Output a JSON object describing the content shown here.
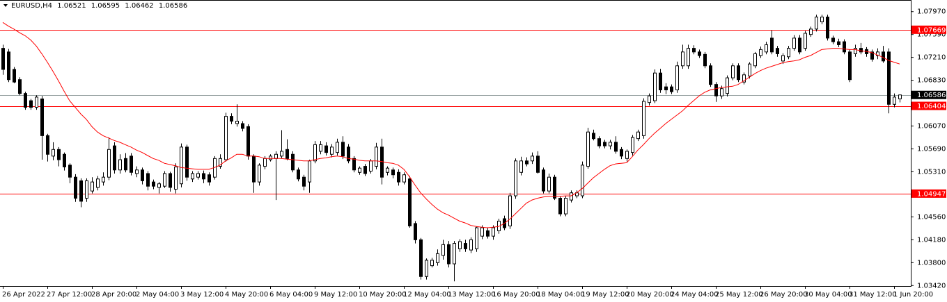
{
  "chart_data": {
    "type": "candlestick",
    "header": {
      "symbol": "EURUSD,H4",
      "open": 1.06521,
      "high": 1.06595,
      "low": 1.06462,
      "close": 1.06586
    },
    "categories": [
      "26 Apr 2022",
      null,
      null,
      null,
      null,
      null,
      null,
      null,
      "27 Apr 12:00",
      null,
      null,
      null,
      null,
      null,
      null,
      null,
      "28 Apr 20:00",
      null,
      null,
      null,
      null,
      null,
      null,
      null,
      "2 May 04:00",
      null,
      null,
      null,
      null,
      null,
      null,
      null,
      "3 May 12:00",
      null,
      null,
      null,
      null,
      null,
      null,
      null,
      "4 May 20:00",
      null,
      null,
      null,
      null,
      null,
      null,
      null,
      "6 May 04:00",
      null,
      null,
      null,
      null,
      null,
      null,
      null,
      "9 May 12:00",
      null,
      null,
      null,
      null,
      null,
      null,
      null,
      "10 May 20:00",
      null,
      null,
      null,
      null,
      null,
      null,
      null,
      "12 May 04:00",
      null,
      null,
      null,
      null,
      null,
      null,
      null,
      "13 May 12:00",
      null,
      null,
      null,
      null,
      null,
      null,
      null,
      "16 May 20:00",
      null,
      null,
      null,
      null,
      null,
      null,
      null,
      "18 May 04:00",
      null,
      null,
      null,
      null,
      null,
      null,
      null,
      "19 May 12:00",
      null,
      null,
      null,
      null,
      null,
      null,
      null,
      "20 May 20:00",
      null,
      null,
      null,
      null,
      null,
      null,
      null,
      "24 May 04:00",
      null,
      null,
      null,
      null,
      null,
      null,
      null,
      "25 May 12:00",
      null,
      null,
      null,
      null,
      null,
      null,
      null,
      "26 May 20:00",
      null,
      null,
      null,
      null,
      null,
      null,
      null,
      "30 May 04:00",
      null,
      null,
      null,
      null,
      null,
      null,
      null,
      "31 May 12:00",
      null,
      null,
      null,
      null,
      null,
      null,
      null,
      "1 Jun 20:00",
      null
    ],
    "open": [
      1.0736,
      1.073,
      1.0701,
      1.0684,
      1.0661,
      1.0649,
      1.0638,
      1.0652,
      1.0591,
      1.0557,
      1.0568,
      1.056,
      1.0542,
      1.0522,
      1.0516,
      1.0487,
      1.0499,
      1.0505,
      1.0514,
      1.0522,
      1.0574,
      1.0534,
      1.0553,
      1.0557,
      1.0528,
      1.0534,
      1.0528,
      1.0514,
      1.0505,
      1.0507,
      1.0528,
      1.0502,
      1.0511,
      1.0572,
      1.0519,
      1.0522,
      1.0528,
      1.0526,
      1.0522,
      1.054,
      1.0551,
      1.0623,
      1.0611,
      1.0611,
      1.0606,
      1.0557,
      1.0514,
      1.054,
      1.0551,
      1.0553,
      1.0557,
      1.0568,
      1.056,
      1.0534,
      1.0522,
      1.0514,
      1.0549,
      1.0565,
      1.0574,
      1.056,
      1.0563,
      1.058,
      1.0572,
      1.0553,
      1.053,
      1.054,
      1.0532,
      1.054,
      1.0572,
      1.053,
      1.0534,
      1.053,
      1.0514,
      1.0519,
      1.0445,
      1.0418,
      1.0357,
      1.0375,
      1.038,
      1.0392,
      1.041,
      1.0378,
      1.0403,
      1.0412,
      1.0401,
      1.0403,
      1.0424,
      1.0433,
      1.0424,
      1.0433,
      1.0453,
      1.0441,
      1.0491,
      1.053,
      1.0549,
      1.0549,
      1.0557,
      1.0534,
      1.0499,
      1.0522,
      1.0487,
      1.0461,
      1.0484,
      1.0491,
      1.0491,
      1.054,
      1.0595,
      1.0586,
      1.058,
      1.0574,
      1.058,
      1.0568,
      1.0553,
      1.0563,
      1.0586,
      1.0591,
      1.0646,
      1.0649,
      1.0695,
      1.0672,
      1.0672,
      1.0667,
      1.0707,
      1.0707,
      1.0736,
      1.073,
      1.0726,
      1.0707,
      1.0676,
      1.0657,
      1.0661,
      1.0687,
      1.0707,
      1.068,
      1.069,
      1.0707,
      1.0724,
      1.073,
      1.0753,
      1.0736,
      1.0715,
      1.0722,
      1.0736,
      1.0753,
      1.0736,
      1.0759,
      1.0768,
      1.078,
      1.0788,
      1.0753,
      1.0747,
      1.0747,
      1.073,
      1.0727,
      1.0736,
      1.0734,
      1.073,
      1.0724,
      1.073,
      1.073,
      1.0643,
      1.06521
    ],
    "high": [
      1.0742,
      1.0735,
      1.0705,
      1.0688,
      1.0664,
      1.0652,
      1.0658,
      1.0657,
      1.0594,
      1.058,
      1.0572,
      1.0563,
      1.0545,
      1.0527,
      1.052,
      1.052,
      1.0522,
      1.0524,
      1.053,
      1.0588,
      1.058,
      1.056,
      1.0562,
      1.0562,
      1.054,
      1.0538,
      1.0532,
      1.0518,
      1.0514,
      1.0532,
      1.0531,
      1.0545,
      1.0578,
      1.0576,
      1.0532,
      1.0532,
      1.0533,
      1.053,
      1.0557,
      1.056,
      1.0629,
      1.0628,
      1.0643,
      1.0615,
      1.061,
      1.056,
      1.0545,
      1.0557,
      1.056,
      1.0565,
      1.06,
      1.0585,
      1.0565,
      1.0538,
      1.0526,
      1.0551,
      1.0582,
      1.0582,
      1.058,
      1.0577,
      1.0586,
      1.059,
      1.0577,
      1.0557,
      1.054,
      1.0544,
      1.0552,
      1.0579,
      1.0586,
      1.054,
      1.0538,
      1.0535,
      1.053,
      1.0524,
      1.0449,
      1.0421,
      1.0387,
      1.0388,
      1.0402,
      1.0418,
      1.0416,
      1.0416,
      1.0419,
      1.0418,
      1.0422,
      1.044,
      1.0442,
      1.0438,
      1.0442,
      1.0453,
      1.0458,
      1.0496,
      1.0553,
      1.0556,
      1.0555,
      1.0563,
      1.0565,
      1.0538,
      1.0528,
      1.0526,
      1.049,
      1.0491,
      1.05,
      1.05,
      1.0548,
      1.0604,
      1.0601,
      1.059,
      1.0584,
      1.0584,
      1.059,
      1.0572,
      1.0568,
      1.0592,
      1.0601,
      1.0653,
      1.0661,
      1.0701,
      1.0702,
      1.0678,
      1.0676,
      1.0714,
      1.0742,
      1.0742,
      1.0741,
      1.0734,
      1.073,
      1.0711,
      1.068,
      1.0674,
      1.0691,
      1.0711,
      1.0711,
      1.0696,
      1.0713,
      1.073,
      1.0739,
      1.0747,
      1.0766,
      1.074,
      1.0728,
      1.074,
      1.0758,
      1.0758,
      1.0765,
      1.0772,
      1.0792,
      1.0792,
      1.0792,
      1.0757,
      1.0752,
      1.0751,
      1.0734,
      1.0742,
      1.0745,
      1.0738,
      1.0734,
      1.0736,
      1.074,
      1.0736,
      1.0661,
      1.06595
    ],
    "low": [
      1.0692,
      1.068,
      1.0678,
      1.0658,
      1.0634,
      1.0634,
      1.0634,
      1.0551,
      1.0548,
      1.055,
      1.054,
      1.0533,
      1.0512,
      1.0481,
      1.0472,
      1.0481,
      1.0495,
      1.05,
      1.0508,
      1.0517,
      1.0528,
      1.0528,
      1.053,
      1.0525,
      1.0522,
      1.051,
      1.05,
      1.0502,
      1.0495,
      1.0504,
      1.0498,
      1.0495,
      1.0505,
      1.0516,
      1.0514,
      1.0518,
      1.0512,
      1.0508,
      1.0518,
      1.0536,
      1.0548,
      1.061,
      1.0606,
      1.0598,
      1.0551,
      1.0496,
      1.0508,
      1.0535,
      1.0548,
      1.0484,
      1.0553,
      1.055,
      1.053,
      1.0515,
      1.05,
      1.0496,
      1.0545,
      1.056,
      1.0558,
      1.0555,
      1.0558,
      1.0552,
      1.0545,
      1.053,
      1.0526,
      1.0524,
      1.0528,
      1.0535,
      1.051,
      1.0525,
      1.052,
      1.0508,
      1.051,
      1.0438,
      1.0412,
      1.0352,
      1.0352,
      1.0372,
      1.0375,
      1.0385,
      1.0372,
      1.0349,
      1.0398,
      1.0398,
      1.0396,
      1.0398,
      1.0419,
      1.042,
      1.0418,
      1.0428,
      1.0434,
      1.0436,
      1.0486,
      1.0525,
      1.054,
      1.0544,
      1.0528,
      1.0495,
      1.0495,
      1.0484,
      1.0457,
      1.0457,
      1.048,
      1.0487,
      1.0487,
      1.0536,
      1.0583,
      1.057,
      1.057,
      1.0568,
      1.0561,
      1.0552,
      1.0548,
      1.0558,
      1.0582,
      1.0586,
      1.0641,
      1.0645,
      1.0662,
      1.066,
      1.066,
      1.0662,
      1.0702,
      1.0702,
      1.0726,
      1.072,
      1.0703,
      1.0672,
      1.0647,
      1.0652,
      1.0656,
      1.0683,
      1.068,
      1.0676,
      1.0686,
      1.0703,
      1.072,
      1.0726,
      1.0726,
      1.0722,
      1.071,
      1.0718,
      1.0732,
      1.0726,
      1.0732,
      1.0755,
      1.0764,
      1.0776,
      1.0749,
      1.0743,
      1.0738,
      1.0726,
      1.068,
      1.0722,
      1.0726,
      1.0722,
      1.0714,
      1.0718,
      1.0712,
      1.0628,
      1.0638,
      1.06462
    ],
    "close": [
      1.0701,
      1.0684,
      1.068,
      1.0661,
      1.0638,
      1.0638,
      1.0655,
      1.0591,
      1.056,
      1.0568,
      1.0551,
      1.0539,
      1.0522,
      1.0487,
      1.0482,
      1.0516,
      1.0514,
      1.0519,
      1.0522,
      1.0568,
      1.0534,
      1.0551,
      1.0534,
      1.053,
      1.0534,
      1.0516,
      1.0507,
      1.0507,
      1.0511,
      1.0528,
      1.0505,
      1.0539,
      1.0572,
      1.0522,
      1.0528,
      1.0528,
      1.0519,
      1.0514,
      1.0553,
      1.0553,
      1.0623,
      1.0615,
      1.0615,
      1.0603,
      1.0557,
      1.0514,
      1.0542,
      1.0553,
      1.0557,
      1.056,
      1.0565,
      1.0553,
      1.0534,
      1.0519,
      1.0507,
      1.0549,
      1.0576,
      1.0576,
      1.0563,
      1.0572,
      1.058,
      1.0557,
      1.0549,
      1.0534,
      1.0537,
      1.0528,
      1.0549,
      1.0572,
      1.0522,
      1.0537,
      1.0526,
      1.0514,
      1.0526,
      1.0441,
      1.0418,
      1.0357,
      1.0384,
      1.0384,
      1.0395,
      1.041,
      1.0378,
      1.0412,
      1.0415,
      1.0403,
      1.0418,
      1.0438,
      1.0438,
      1.0424,
      1.0438,
      1.0449,
      1.0438,
      1.0491,
      1.0549,
      1.0549,
      1.0544,
      1.0557,
      1.053,
      1.0499,
      1.0522,
      1.0487,
      1.0461,
      1.0487,
      1.0496,
      1.0496,
      1.0542,
      1.0597,
      1.0586,
      1.0574,
      1.0574,
      1.058,
      1.0565,
      1.0557,
      1.0565,
      1.0588,
      1.0597,
      1.0648,
      1.0657,
      1.0695,
      1.0667,
      1.0667,
      1.0664,
      1.0707,
      1.073,
      1.0736,
      1.073,
      1.0724,
      1.0707,
      1.0676,
      1.0657,
      1.0669,
      1.0687,
      1.0707,
      1.0684,
      1.0692,
      1.071,
      1.0727,
      1.0734,
      1.0742,
      1.073,
      1.0727,
      1.0724,
      1.0736,
      1.0753,
      1.073,
      1.0761,
      1.0768,
      1.0788,
      1.0788,
      1.0753,
      1.0747,
      1.0742,
      1.073,
      1.0684,
      1.0736,
      1.073,
      1.0727,
      1.0718,
      1.073,
      1.0715,
      1.0643,
      1.0655,
      1.06586
    ],
    "ma": {
      "color": "#ff0000",
      "values": [
        1.0779,
        1.0773,
        1.0768,
        1.0762,
        1.0757,
        1.075,
        1.074,
        1.0727,
        1.0713,
        1.0698,
        1.0682,
        1.0665,
        1.0649,
        1.0638,
        1.0627,
        1.0618,
        1.0606,
        1.0597,
        1.0591,
        1.0587,
        1.0583,
        1.058,
        1.0576,
        1.0572,
        1.0567,
        1.0563,
        1.0558,
        1.0553,
        1.055,
        1.0545,
        1.0543,
        1.0541,
        1.0538,
        1.0537,
        1.0536,
        1.0535,
        1.0535,
        1.0535,
        1.0538,
        1.0542,
        1.0549,
        1.0554,
        1.056,
        1.056,
        1.0557,
        1.0557,
        1.0556,
        1.0553,
        1.0553,
        1.0553,
        1.0553,
        1.0552,
        1.0551,
        1.055,
        1.0549,
        1.0549,
        1.0551,
        1.0553,
        1.0554,
        1.0556,
        1.0557,
        1.0556,
        1.0553,
        1.0552,
        1.055,
        1.0549,
        1.0549,
        1.0549,
        1.0548,
        1.0546,
        1.0545,
        1.0542,
        1.0535,
        1.0523,
        1.0509,
        1.0496,
        1.0486,
        1.0477,
        1.0469,
        1.0463,
        1.0459,
        1.0454,
        1.0449,
        1.0446,
        1.0442,
        1.044,
        1.0439,
        1.0438,
        1.0439,
        1.044,
        1.0445,
        1.0452,
        1.0461,
        1.047,
        1.0479,
        1.0484,
        1.0487,
        1.0489,
        1.049,
        1.049,
        1.049,
        1.0491,
        1.0491,
        1.0496,
        1.0503,
        1.0512,
        1.0521,
        1.0528,
        1.0535,
        1.0541,
        1.0544,
        1.0545,
        1.0546,
        1.0556,
        1.0567,
        1.0576,
        1.0586,
        1.0595,
        1.0603,
        1.0611,
        1.0618,
        1.0625,
        1.0632,
        1.0641,
        1.0649,
        1.0657,
        1.0663,
        1.0667,
        1.0669,
        1.0671,
        1.0672,
        1.0673,
        1.0676,
        1.0682,
        1.0688,
        1.0694,
        1.0699,
        1.0703,
        1.0706,
        1.0709,
        1.0712,
        1.0714,
        1.0715,
        1.0717,
        1.0721,
        1.0724,
        1.0729,
        1.0734,
        1.0735,
        1.0736,
        1.0736,
        1.0735,
        1.0734,
        1.0734,
        1.0732,
        1.0731,
        1.0729,
        1.0725,
        1.0721,
        1.0716,
        1.0713,
        1.071
      ]
    },
    "bull_color": "#ffffff",
    "bear_color": "#000000",
    "levels": [
      {
        "value": 1.07669,
        "color": "#ff0000"
      },
      {
        "value": 1.06404,
        "color": "#ff0000"
      },
      {
        "value": 1.04947,
        "color": "#ff0000"
      }
    ],
    "bid": {
      "value": 1.06586,
      "line_color": "#9aa5a5",
      "label_color": "#000000"
    },
    "ylim": [
      1.034,
      1.0814
    ],
    "yticks": [
      {
        "value": 1.0797,
        "label": "1.07970"
      },
      {
        "value": 1.0759,
        "label": "1.07590"
      },
      {
        "value": 1.0721,
        "label": "1.07210"
      },
      {
        "value": 1.0683,
        "label": "1.06830"
      },
      {
        "value": 1.0607,
        "label": "1.06070"
      },
      {
        "value": 1.0569,
        "label": "1.05690"
      },
      {
        "value": 1.0531,
        "label": "1.05310"
      },
      {
        "value": 1.0456,
        "label": "1.04560"
      },
      {
        "value": 1.0418,
        "label": "1.04180"
      },
      {
        "value": 1.038,
        "label": "1.03800"
      },
      {
        "value": 1.0342,
        "label": "1.03420"
      }
    ]
  }
}
